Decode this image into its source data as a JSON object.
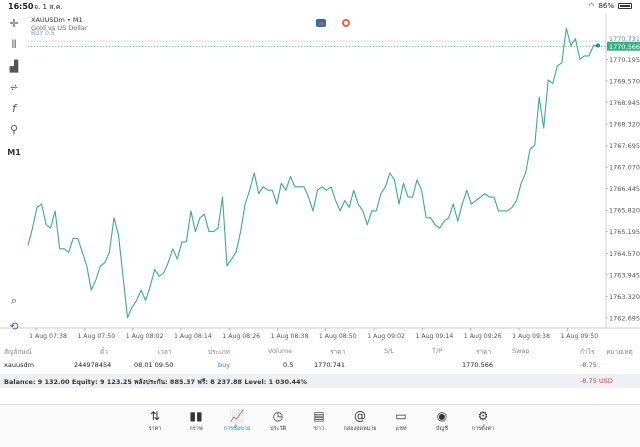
{
  "status_bar": {
    "time": "16:50",
    "date": "จ. 1 ส.ค.",
    "battery": "86%"
  },
  "symbol": {
    "name": "XAUUSDm • M1",
    "description": "Gold vs US Dollar",
    "sub": "BUY 0.5"
  },
  "timeframe": "M1",
  "price_axis": [
    "1770.731",
    "1770.566",
    "1770.195",
    "1769.570",
    "1768.945",
    "1768.320",
    "1767.695",
    "1767.070",
    "1766.445",
    "1765.820",
    "1765.195",
    "1764.570",
    "1763.945",
    "1763.320",
    "1762.695"
  ],
  "time_axis": [
    "1 Aug 07:38",
    "1 Aug 07:50",
    "1 Aug 08:02",
    "1 Aug 08:14",
    "1 Aug 08:26",
    "1 Aug 08:38",
    "1 Aug 08:50",
    "1 Aug 09:02",
    "1 Aug 09:14",
    "1 Aug 09:26",
    "1 Aug 09:38",
    "1 Aug 09:50"
  ],
  "chart_data": {
    "type": "line",
    "color": "#3aaf84",
    "ylim": [
      1762.4,
      1771.4
    ],
    "values": [
      1764.8,
      1765.3,
      1765.9,
      1766.0,
      1765.4,
      1765.3,
      1765.8,
      1764.7,
      1764.7,
      1764.6,
      1765.0,
      1765.0,
      1764.6,
      1764.2,
      1763.5,
      1763.8,
      1764.2,
      1764.3,
      1764.6,
      1765.6,
      1765.1,
      1763.9,
      1762.7,
      1763.0,
      1763.2,
      1763.5,
      1763.2,
      1763.6,
      1764.1,
      1763.9,
      1764.0,
      1764.3,
      1764.7,
      1764.4,
      1764.9,
      1764.9,
      1765.8,
      1765.2,
      1765.6,
      1765.7,
      1765.2,
      1765.2,
      1765.3,
      1766.2,
      1764.2,
      1764.4,
      1764.6,
      1765.2,
      1766.0,
      1766.4,
      1766.9,
      1766.3,
      1766.5,
      1766.4,
      1766.4,
      1766.0,
      1766.6,
      1766.4,
      1766.8,
      1766.5,
      1766.5,
      1766.5,
      1766.2,
      1765.8,
      1766.4,
      1766.5,
      1766.4,
      1766.5,
      1766.1,
      1765.8,
      1766.1,
      1765.9,
      1766.4,
      1766.0,
      1765.8,
      1765.4,
      1765.8,
      1765.8,
      1766.3,
      1766.5,
      1766.9,
      1766.7,
      1766.0,
      1766.6,
      1766.2,
      1766.2,
      1766.7,
      1766.4,
      1765.6,
      1765.6,
      1765.4,
      1765.3,
      1765.5,
      1765.6,
      1766.0,
      1765.5,
      1766.0,
      1766.4,
      1766.0,
      1766.1,
      1766.2,
      1766.3,
      1766.2,
      1766.2,
      1765.8,
      1765.8,
      1765.8,
      1765.9,
      1766.1,
      1766.6,
      1766.9,
      1767.6,
      1767.7,
      1769.1,
      1768.2,
      1769.6,
      1769.5,
      1770.0,
      1770.1,
      1771.1,
      1770.6,
      1770.8,
      1770.2,
      1770.3,
      1770.3,
      1770.6,
      1770.6
    ],
    "current_price": 1770.566,
    "ask_price": 1770.731
  },
  "controls": {
    "icon1": "robot-icon",
    "icon2": "stopwatch-icon"
  },
  "table_header": {
    "symbol": "สัญลักษณ์",
    "ticket": "ตั๋ว",
    "time": "เวลา",
    "type": "ประเภท",
    "volume": "Volume",
    "price": "ราคา",
    "sl": "S/L",
    "tp": "T/P",
    "current": "ราคา",
    "swap": "Swap",
    "profit": "กำไร",
    "comment": "หมายเหตุ"
  },
  "position": {
    "symbol": "xauusdm",
    "ticket": "244978454",
    "time": "08.01 09:50",
    "type": "buy",
    "volume": "0.5",
    "price": "1770.741",
    "current": "1770.566",
    "profit": "-8.75"
  },
  "balance": {
    "text": "Balance: 9 132.00 Equity: 9 123.25 พลังประกัน: 885.37 ฟรี: 8 237.88 Level: 1 030.44%",
    "profit": "-8.75",
    "currency": "USD"
  },
  "nav": [
    {
      "label": "ราคา",
      "icon": "quotes-icon",
      "glyph": "⇅"
    },
    {
      "label": "กราฟ",
      "icon": "chart-icon",
      "glyph": "▮▮"
    },
    {
      "label": "การซื้อขาย",
      "icon": "trade-icon",
      "glyph": "📈",
      "active": true
    },
    {
      "label": "ประวัติ",
      "icon": "history-icon",
      "glyph": "◷"
    },
    {
      "label": "ข่าว",
      "icon": "news-icon",
      "glyph": "▤"
    },
    {
      "label": "กล่องจดหมาย",
      "icon": "mail-icon",
      "glyph": "@"
    },
    {
      "label": "แชท",
      "icon": "chat-icon",
      "glyph": "▭"
    },
    {
      "label": "บัญชี",
      "icon": "account-icon",
      "glyph": "◉"
    },
    {
      "label": "การตั้งค่า",
      "icon": "settings-icon",
      "glyph": "⚙"
    }
  ]
}
